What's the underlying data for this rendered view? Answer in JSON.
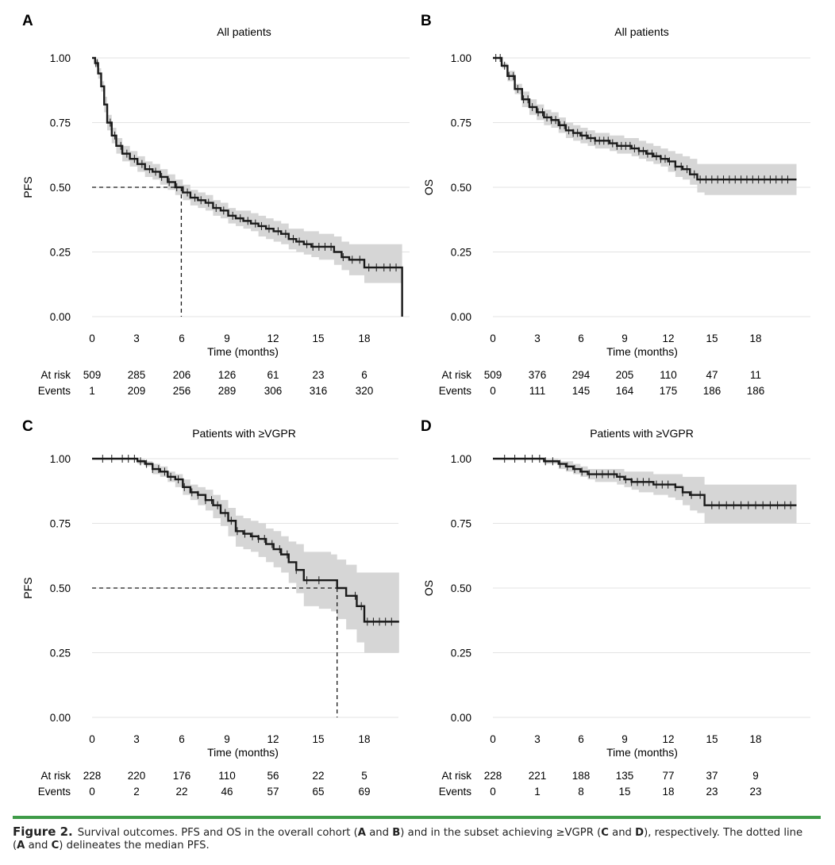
{
  "colors": {
    "line": "#1a1a1a",
    "band": "#d6d6d6",
    "grid": "#e3e3e3",
    "accent": "#3f9b48"
  },
  "caption": {
    "label": "Figure 2.",
    "text_1": "Survival outcomes. PFS and OS in the overall cohort (",
    "A": "A",
    "and": "and",
    "B": "B",
    "text_2": ") and in the subset achieving ≥VGPR (",
    "C": "C",
    "D": "D",
    "text_3": "), respectively. The dotted line",
    "text_4": "(",
    "text_5": ") delineates the median PFS."
  },
  "chart_data": [
    {
      "panel": "A",
      "type": "line",
      "title": "All patients",
      "xlabel": "Time (months)",
      "ylabel": "PFS",
      "xlim": [
        -1,
        21.2
      ],
      "ylim": [
        0,
        1
      ],
      "xticks": [
        "0",
        "3",
        "6",
        "9",
        "12",
        "15",
        "18"
      ],
      "yticks": [
        "0.00",
        "0.25",
        "0.50",
        "0.75",
        "1.00"
      ],
      "grid": true,
      "median": 5.9,
      "risk_table": {
        "labels": [
          "At risk",
          "Events"
        ],
        "at_risk": [
          "509",
          "285",
          "206",
          "126",
          "61",
          "23",
          "6"
        ],
        "events": [
          "1",
          "209",
          "256",
          "289",
          "306",
          "316",
          "320"
        ]
      },
      "x": [
        0,
        0.2,
        0.4,
        0.6,
        0.8,
        1.0,
        1.3,
        1.6,
        2.0,
        2.5,
        3,
        3.5,
        4,
        4.5,
        5,
        5.5,
        6,
        6.5,
        7,
        7.5,
        8,
        8.5,
        9,
        9.5,
        10,
        10.5,
        11,
        11.5,
        12,
        12.5,
        13,
        13.5,
        14,
        14.5,
        15,
        15.5,
        16,
        16.5,
        17,
        17.5,
        18,
        18.5,
        19,
        19.5,
        20,
        20.3,
        20.5,
        20.5
      ],
      "y": [
        1.0,
        0.98,
        0.94,
        0.89,
        0.82,
        0.75,
        0.7,
        0.66,
        0.63,
        0.61,
        0.59,
        0.57,
        0.56,
        0.54,
        0.52,
        0.5,
        0.48,
        0.46,
        0.45,
        0.44,
        0.42,
        0.41,
        0.39,
        0.38,
        0.37,
        0.36,
        0.35,
        0.34,
        0.33,
        0.32,
        0.3,
        0.29,
        0.28,
        0.27,
        0.27,
        0.27,
        0.25,
        0.23,
        0.22,
        0.22,
        0.19,
        0.19,
        0.19,
        0.19,
        0.19,
        0.19,
        0.19,
        0.0
      ],
      "ci_upper": [
        1.0,
        0.99,
        0.96,
        0.91,
        0.85,
        0.78,
        0.73,
        0.69,
        0.66,
        0.64,
        0.62,
        0.6,
        0.59,
        0.57,
        0.55,
        0.53,
        0.51,
        0.49,
        0.48,
        0.47,
        0.45,
        0.44,
        0.42,
        0.41,
        0.41,
        0.4,
        0.39,
        0.38,
        0.37,
        0.36,
        0.34,
        0.34,
        0.33,
        0.33,
        0.32,
        0.32,
        0.31,
        0.29,
        0.28,
        0.28,
        0.28,
        0.28,
        0.28,
        0.28,
        0.28,
        0.28,
        0.28,
        0.28
      ],
      "ci_lower": [
        1.0,
        0.97,
        0.92,
        0.87,
        0.79,
        0.72,
        0.67,
        0.63,
        0.6,
        0.58,
        0.56,
        0.54,
        0.53,
        0.51,
        0.49,
        0.47,
        0.45,
        0.43,
        0.42,
        0.41,
        0.39,
        0.38,
        0.36,
        0.35,
        0.34,
        0.33,
        0.31,
        0.3,
        0.29,
        0.28,
        0.26,
        0.25,
        0.24,
        0.23,
        0.22,
        0.22,
        0.2,
        0.18,
        0.16,
        0.16,
        0.13,
        0.13,
        0.13,
        0.13,
        0.13,
        0.13,
        0.13,
        0.13
      ],
      "censor_x": [
        0.25,
        0.35,
        1.2,
        1.5,
        1.9,
        2.3,
        2.8,
        3.3,
        3.8,
        4.2,
        4.6,
        5.1,
        5.6,
        6.3,
        6.8,
        7.2,
        7.7,
        8.2,
        8.7,
        9.3,
        9.8,
        10.3,
        10.8,
        11.2,
        11.7,
        12.3,
        12.8,
        13.3,
        13.7,
        14.2,
        14.6,
        15.0,
        15.4,
        15.8,
        16.6,
        17.2,
        17.7,
        18.3,
        18.8,
        19.3,
        19.7,
        20.1
      ]
    },
    {
      "panel": "B",
      "type": "line",
      "title": "All patients",
      "xlabel": "Time (months)",
      "ylabel": "OS",
      "xlim": [
        -1,
        21.2
      ],
      "ylim": [
        0,
        1
      ],
      "xticks": [
        "0",
        "3",
        "6",
        "9",
        "12",
        "15",
        "18"
      ],
      "yticks": [
        "0.00",
        "0.25",
        "0.50",
        "0.75",
        "1.00"
      ],
      "grid": true,
      "risk_table": {
        "labels": [
          "At risk",
          "Events"
        ],
        "at_risk": [
          "509",
          "376",
          "294",
          "205",
          "110",
          "47",
          "11"
        ],
        "events": [
          "0",
          "111",
          "145",
          "164",
          "175",
          "186",
          "186"
        ]
      },
      "x": [
        0,
        0.3,
        0.6,
        1,
        1.5,
        2,
        2.5,
        3,
        3.5,
        4,
        4.5,
        5,
        5.5,
        6,
        6.5,
        7,
        7.5,
        8,
        8.5,
        9,
        9.5,
        10,
        10.5,
        11,
        11.5,
        12,
        12.5,
        13,
        13.5,
        14,
        14.5,
        15,
        16,
        17,
        18,
        19,
        20,
        20.8
      ],
      "y": [
        1.0,
        1.0,
        0.97,
        0.93,
        0.88,
        0.84,
        0.81,
        0.79,
        0.77,
        0.76,
        0.74,
        0.72,
        0.71,
        0.7,
        0.69,
        0.68,
        0.68,
        0.67,
        0.66,
        0.66,
        0.65,
        0.64,
        0.63,
        0.62,
        0.61,
        0.6,
        0.58,
        0.57,
        0.55,
        0.53,
        0.53,
        0.53,
        0.53,
        0.53,
        0.53,
        0.53,
        0.53,
        0.53
      ],
      "ci_upper": [
        1.0,
        1.0,
        0.98,
        0.95,
        0.9,
        0.87,
        0.84,
        0.82,
        0.8,
        0.79,
        0.77,
        0.75,
        0.74,
        0.73,
        0.72,
        0.71,
        0.71,
        0.7,
        0.7,
        0.69,
        0.69,
        0.68,
        0.67,
        0.66,
        0.65,
        0.64,
        0.63,
        0.62,
        0.61,
        0.59,
        0.59,
        0.59,
        0.59,
        0.59,
        0.59,
        0.59,
        0.59,
        0.59
      ],
      "ci_lower": [
        1.0,
        1.0,
        0.96,
        0.91,
        0.86,
        0.81,
        0.78,
        0.76,
        0.74,
        0.73,
        0.71,
        0.69,
        0.68,
        0.67,
        0.66,
        0.65,
        0.65,
        0.64,
        0.63,
        0.63,
        0.62,
        0.61,
        0.6,
        0.59,
        0.58,
        0.56,
        0.54,
        0.53,
        0.51,
        0.48,
        0.47,
        0.47,
        0.47,
        0.47,
        0.47,
        0.47,
        0.47,
        0.47
      ],
      "censor_x": [
        0.2,
        0.5,
        0.8,
        1.1,
        1.4,
        1.7,
        2.1,
        2.4,
        2.7,
        3.1,
        3.4,
        3.7,
        4.0,
        4.3,
        4.6,
        4.9,
        5.2,
        5.5,
        5.8,
        6.1,
        6.4,
        6.7,
        7.0,
        7.3,
        7.6,
        7.9,
        8.2,
        8.5,
        8.8,
        9.1,
        9.4,
        9.7,
        10.0,
        10.3,
        10.6,
        10.9,
        11.2,
        11.5,
        11.8,
        12.1,
        12.5,
        12.9,
        13.3,
        13.8,
        14.2,
        14.6,
        15.0,
        15.4,
        15.8,
        16.2,
        16.6,
        17.0,
        17.4,
        17.8,
        18.2,
        18.6,
        19.0,
        19.4,
        19.8,
        20.2
      ]
    },
    {
      "panel": "C",
      "type": "line",
      "title": "Patients with ≥VGPR",
      "xlabel": "Time (months)",
      "ylabel": "PFS",
      "xlim": [
        -1,
        21.2
      ],
      "ylim": [
        0,
        1
      ],
      "xticks": [
        "0",
        "3",
        "6",
        "9",
        "12",
        "15",
        "18"
      ],
      "yticks": [
        "0.00",
        "0.25",
        "0.50",
        "0.75",
        "1.00"
      ],
      "grid": true,
      "median": 16.2,
      "risk_table": {
        "labels": [
          "At risk",
          "Events"
        ],
        "at_risk": [
          "228",
          "220",
          "176",
          "110",
          "56",
          "22",
          "5"
        ],
        "events": [
          "0",
          "2",
          "22",
          "46",
          "57",
          "65",
          "69"
        ]
      },
      "x": [
        0,
        1,
        2,
        2.5,
        3,
        3.5,
        4,
        4.5,
        5,
        5.5,
        6,
        6.5,
        7,
        7.5,
        8,
        8.5,
        9,
        9.5,
        10,
        10.5,
        11,
        11.5,
        12,
        12.5,
        13,
        13.5,
        14,
        15,
        15.8,
        16.2,
        16.8,
        17.5,
        18,
        19,
        20,
        20.3
      ],
      "y": [
        1.0,
        1.0,
        1.0,
        1.0,
        0.99,
        0.98,
        0.96,
        0.95,
        0.93,
        0.92,
        0.89,
        0.87,
        0.86,
        0.84,
        0.82,
        0.79,
        0.76,
        0.72,
        0.71,
        0.7,
        0.69,
        0.67,
        0.65,
        0.63,
        0.6,
        0.57,
        0.53,
        0.53,
        0.53,
        0.5,
        0.47,
        0.43,
        0.37,
        0.37,
        0.37,
        0.37
      ],
      "ci_upper": [
        1.0,
        1.0,
        1.0,
        1.0,
        1.0,
        0.99,
        0.98,
        0.97,
        0.95,
        0.94,
        0.92,
        0.9,
        0.89,
        0.88,
        0.86,
        0.84,
        0.81,
        0.78,
        0.77,
        0.76,
        0.75,
        0.73,
        0.72,
        0.7,
        0.68,
        0.67,
        0.64,
        0.64,
        0.63,
        0.61,
        0.59,
        0.56,
        0.56,
        0.56,
        0.56,
        0.56
      ],
      "ci_lower": [
        1.0,
        1.0,
        1.0,
        1.0,
        0.98,
        0.97,
        0.94,
        0.93,
        0.91,
        0.89,
        0.86,
        0.84,
        0.82,
        0.8,
        0.77,
        0.74,
        0.7,
        0.66,
        0.65,
        0.64,
        0.62,
        0.6,
        0.58,
        0.56,
        0.52,
        0.48,
        0.43,
        0.42,
        0.41,
        0.38,
        0.34,
        0.29,
        0.25,
        0.25,
        0.25,
        0.25
      ],
      "censor_x": [
        0.7,
        1.3,
        2.0,
        2.4,
        2.8,
        3.2,
        3.6,
        4.0,
        4.4,
        4.8,
        5.2,
        5.7,
        6.1,
        6.6,
        7.0,
        7.5,
        7.9,
        8.3,
        8.8,
        9.2,
        9.6,
        10.1,
        10.6,
        11.0,
        11.4,
        11.9,
        12.4,
        12.9,
        13.5,
        14.2,
        15.0,
        17.4,
        17.8,
        18.2,
        18.6,
        19.0,
        19.4,
        19.8
      ]
    },
    {
      "panel": "D",
      "type": "line",
      "title": "Patients with ≥VGPR",
      "xlabel": "Time (months)",
      "ylabel": "OS",
      "xlim": [
        -1,
        21.2
      ],
      "ylim": [
        0,
        1
      ],
      "xticks": [
        "0",
        "3",
        "6",
        "9",
        "12",
        "15",
        "18"
      ],
      "yticks": [
        "0.00",
        "0.25",
        "0.50",
        "0.75",
        "1.00"
      ],
      "grid": true,
      "risk_table": {
        "labels": [
          "At risk",
          "Events"
        ],
        "at_risk": [
          "228",
          "221",
          "188",
          "135",
          "77",
          "37",
          "9"
        ],
        "events": [
          "0",
          "1",
          "8",
          "15",
          "18",
          "23",
          "23"
        ]
      },
      "x": [
        0,
        2,
        3,
        3.5,
        4,
        4.5,
        5,
        5.5,
        6,
        6.5,
        7,
        8,
        8.5,
        9,
        9.5,
        10,
        11,
        12,
        12.5,
        13,
        13.5,
        14,
        14.5,
        15,
        16,
        17,
        18,
        19,
        20,
        20.8
      ],
      "y": [
        1.0,
        1.0,
        1.0,
        0.99,
        0.99,
        0.98,
        0.97,
        0.96,
        0.95,
        0.94,
        0.94,
        0.94,
        0.93,
        0.92,
        0.91,
        0.91,
        0.9,
        0.9,
        0.89,
        0.87,
        0.86,
        0.86,
        0.82,
        0.82,
        0.82,
        0.82,
        0.82,
        0.82,
        0.82,
        0.82
      ],
      "ci_upper": [
        1.0,
        1.0,
        1.0,
        1.0,
        1.0,
        0.99,
        0.99,
        0.98,
        0.97,
        0.96,
        0.96,
        0.96,
        0.96,
        0.95,
        0.95,
        0.95,
        0.94,
        0.94,
        0.94,
        0.93,
        0.93,
        0.93,
        0.9,
        0.9,
        0.9,
        0.9,
        0.9,
        0.9,
        0.9,
        0.9
      ],
      "ci_lower": [
        1.0,
        1.0,
        1.0,
        0.98,
        0.98,
        0.96,
        0.95,
        0.94,
        0.93,
        0.92,
        0.91,
        0.91,
        0.9,
        0.89,
        0.88,
        0.87,
        0.86,
        0.85,
        0.84,
        0.82,
        0.8,
        0.79,
        0.75,
        0.75,
        0.75,
        0.75,
        0.75,
        0.75,
        0.75,
        0.75
      ],
      "censor_x": [
        0.8,
        1.5,
        2.2,
        2.7,
        3.2,
        3.6,
        4.1,
        4.6,
        5.1,
        5.6,
        6.1,
        6.6,
        7.1,
        7.5,
        7.9,
        8.3,
        8.7,
        9.1,
        9.5,
        9.9,
        10.3,
        10.7,
        11.2,
        11.6,
        12.0,
        12.5,
        13.0,
        13.6,
        14.2,
        15.0,
        15.5,
        16.0,
        16.5,
        17.0,
        17.5,
        18.0,
        18.5,
        19.0,
        19.5,
        20.0,
        20.4
      ]
    }
  ]
}
